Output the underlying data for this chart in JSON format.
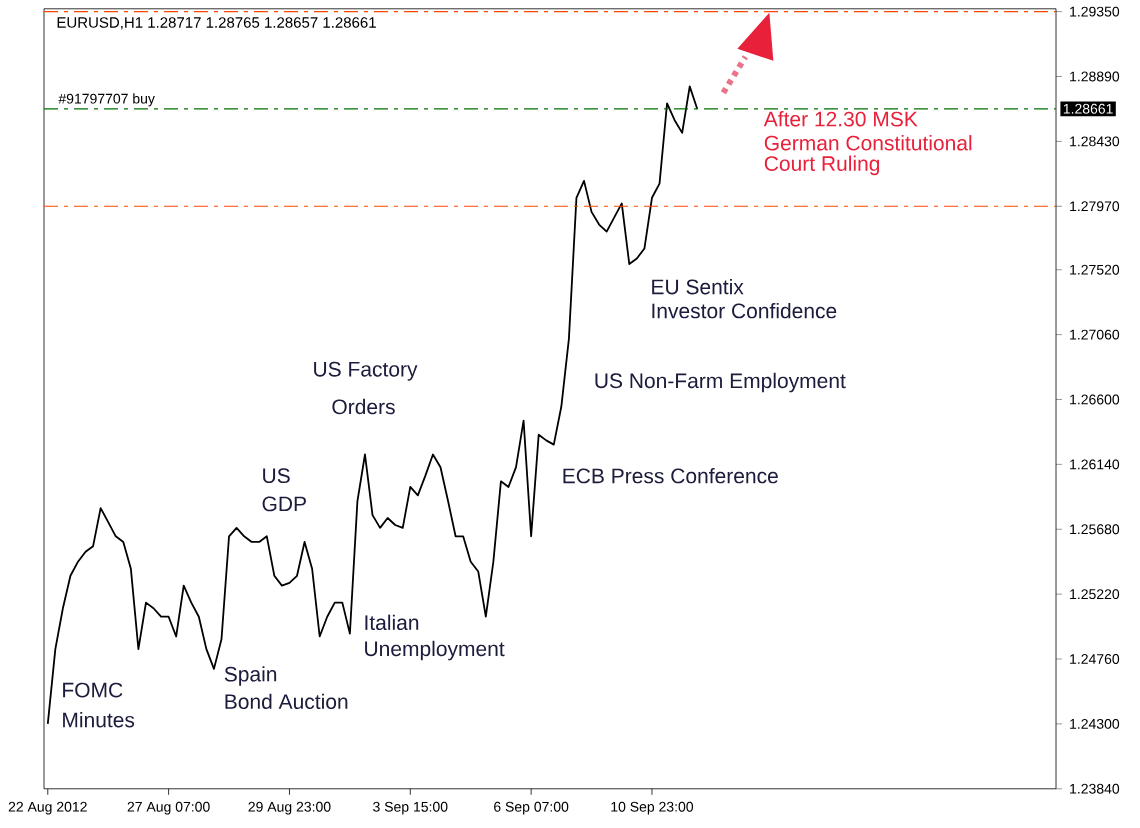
{
  "chart_data": {
    "type": "line",
    "title": "EURUSD,H1  1.28717 1.28765 1.28657 1.28661",
    "categories": [
      "22 Aug 2012",
      null,
      null,
      null,
      null,
      null,
      null,
      null,
      null,
      null,
      null,
      null,
      null,
      null,
      null,
      null,
      "27 Aug 07:00",
      null,
      null,
      null,
      null,
      null,
      null,
      null,
      null,
      null,
      null,
      null,
      null,
      null,
      null,
      null,
      "29 Aug 23:00",
      null,
      null,
      null,
      null,
      null,
      null,
      null,
      null,
      null,
      null,
      null,
      null,
      null,
      null,
      null,
      "3 Sep 15:00",
      null,
      null,
      null,
      null,
      null,
      null,
      null,
      null,
      null,
      null,
      null,
      null,
      null,
      null,
      null,
      "6 Sep 07:00",
      null,
      null,
      null,
      null,
      null,
      null,
      null,
      null,
      null,
      null,
      null,
      null,
      null,
      null,
      null,
      "10 Sep 23:00",
      null,
      null,
      null,
      null,
      null,
      null,
      null,
      null,
      null,
      null,
      null,
      null,
      null,
      null,
      null,
      null,
      null,
      null,
      null,
      null,
      null,
      null,
      null,
      null,
      null,
      null,
      null,
      null,
      null,
      null,
      null,
      null,
      null,
      null,
      null,
      null,
      null,
      null,
      null,
      null,
      null,
      null,
      null,
      null,
      null,
      null,
      null,
      null,
      null,
      null,
      null,
      null,
      null
    ],
    "series": [
      {
        "color": "#000000",
        "values": [
          1.243,
          1.2483,
          1.2512,
          1.2535,
          1.2545,
          1.2552,
          1.2556,
          1.2583,
          1.2573,
          1.2563,
          1.2559,
          1.254,
          1.2483,
          1.2516,
          1.2512,
          1.2506,
          1.2506,
          1.2492,
          1.2528,
          1.2516,
          1.2506,
          1.2483,
          1.2469,
          1.249,
          1.2563,
          1.2569,
          1.2563,
          1.2559,
          1.2559,
          1.2563,
          1.2535,
          1.2528,
          1.253,
          1.2535,
          1.2559,
          1.254,
          1.2492,
          1.2506,
          1.2516,
          1.2516,
          1.2494,
          1.2588,
          1.2621,
          1.2578,
          1.2569,
          1.2576,
          1.2571,
          1.2569,
          1.2598,
          1.2592,
          1.2606,
          1.2621,
          1.2612,
          1.2588,
          1.2563,
          1.2563,
          1.2545,
          1.2538,
          1.2506,
          1.2545,
          1.2602,
          1.2598,
          1.2612,
          1.2645,
          1.2563,
          1.2635,
          1.2631,
          1.2628,
          1.2655,
          1.2703,
          1.2803,
          1.2815,
          1.2793,
          1.2784,
          1.2779,
          1.2789,
          1.2799,
          1.2756,
          1.276,
          1.2767,
          1.2803,
          1.2813,
          1.287,
          1.2858,
          1.2849,
          1.2882,
          1.2866,
          null,
          null,
          null,
          null,
          null,
          null,
          null,
          null,
          null,
          null,
          null,
          null,
          null,
          null,
          null,
          null,
          null,
          null,
          null,
          null,
          null,
          null,
          null,
          null,
          null,
          null,
          null,
          null,
          null,
          null,
          null,
          null,
          null,
          null,
          null,
          null,
          null,
          null,
          null,
          null,
          null,
          null,
          null,
          null,
          null,
          null,
          null
        ]
      }
    ],
    "ylim": [
      1.2384,
      1.2937
    ],
    "yticks": [
      {
        "value": 1.2384,
        "label": "1.23840"
      },
      {
        "value": 1.243,
        "label": "1.24300"
      },
      {
        "value": 1.2476,
        "label": "1.24760"
      },
      {
        "value": 1.2522,
        "label": "1.25220"
      },
      {
        "value": 1.2568,
        "label": "1.25680"
      },
      {
        "value": 1.2614,
        "label": "1.26140"
      },
      {
        "value": 1.266,
        "label": "1.26600"
      },
      {
        "value": 1.2706,
        "label": "1.27060"
      },
      {
        "value": 1.2752,
        "label": "1.27520"
      },
      {
        "value": 1.2797,
        "label": "1.27970"
      },
      {
        "value": 1.2843,
        "label": "1.28430"
      },
      {
        "value": 1.2889,
        "label": "1.28890"
      },
      {
        "value": 1.2935,
        "label": "1.29350"
      }
    ],
    "ref_lines": [
      {
        "axis": "y",
        "value": 1.2935,
        "color": "#ff4500",
        "line_style": "dashed"
      },
      {
        "axis": "y",
        "value": 1.28661,
        "label": "#91797707 buy",
        "color": "#007000",
        "line_style": "dashed"
      },
      {
        "axis": "y",
        "value": 1.2797,
        "color": "#ff4500",
        "line_style": "dashed"
      }
    ],
    "annotations": [
      "1.28661",
      "FOMC",
      "Minutes",
      "Spain",
      "Bond Auction",
      "US",
      "GDP",
      "US Factory",
      "Orders",
      "Italian",
      "Unemployment",
      "ECB Press Conference",
      "US Non-Farm Employment",
      "EU Sentix",
      "Investor Confidence",
      "After 12.30 MSK",
      "German Constitutional",
      "Court Ruling"
    ]
  }
}
